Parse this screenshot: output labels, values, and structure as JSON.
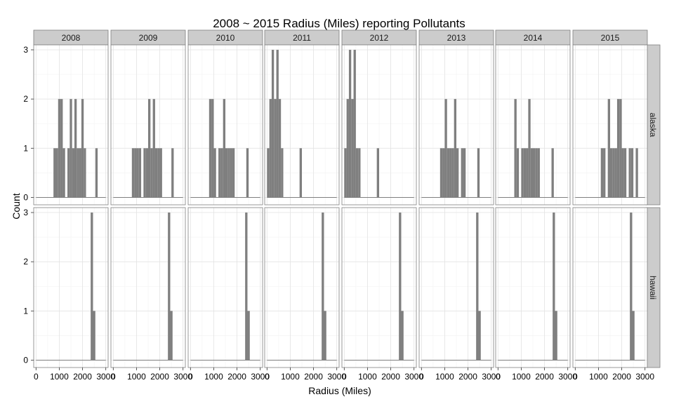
{
  "chart_data": {
    "type": "histogram",
    "title": "2008 ~ 2015 Radius (Miles) reporting Pollutants",
    "xlabel": "Radius (Miles)",
    "ylabel": "Count",
    "xlim": [
      -100,
      3100
    ],
    "ylim": [
      -0.15,
      3.1
    ],
    "x_ticks": [
      0,
      1000,
      2000,
      3000
    ],
    "x_tick_labels": [
      "0",
      "1000",
      "2000",
      "3000"
    ],
    "y_ticks": [
      0,
      1,
      2,
      3
    ],
    "y_tick_labels": [
      "0",
      "1",
      "2",
      "3"
    ],
    "bin_width": 100,
    "bar_color": "#7f7f7f",
    "strip_color": "#cccccc",
    "panel_border_color": "#7f7f7f",
    "grid": true,
    "columns": [
      "2008",
      "2009",
      "2010",
      "2011",
      "2012",
      "2013",
      "2014",
      "2015"
    ],
    "rows": [
      "alaska",
      "hawaii"
    ],
    "bins": {
      "alaska": {
        "2008": [
          [
            800,
            1
          ],
          [
            900,
            1
          ],
          [
            1000,
            2
          ],
          [
            1100,
            2
          ],
          [
            1200,
            1
          ],
          [
            1400,
            1
          ],
          [
            1500,
            2
          ],
          [
            1600,
            1
          ],
          [
            1700,
            2
          ],
          [
            1800,
            1
          ],
          [
            1900,
            1
          ],
          [
            2000,
            2
          ],
          [
            2100,
            1
          ],
          [
            2600,
            1
          ]
        ],
        "2009": [
          [
            850,
            1
          ],
          [
            950,
            1
          ],
          [
            1050,
            1
          ],
          [
            1150,
            1
          ],
          [
            1350,
            1
          ],
          [
            1450,
            1
          ],
          [
            1550,
            2
          ],
          [
            1650,
            1
          ],
          [
            1750,
            2
          ],
          [
            1850,
            1
          ],
          [
            1950,
            1
          ],
          [
            2050,
            1
          ],
          [
            2550,
            1
          ]
        ],
        "2010": [
          [
            850,
            2
          ],
          [
            950,
            2
          ],
          [
            1050,
            1
          ],
          [
            1250,
            1
          ],
          [
            1350,
            1
          ],
          [
            1450,
            2
          ],
          [
            1550,
            1
          ],
          [
            1650,
            1
          ],
          [
            1750,
            1
          ],
          [
            1850,
            1
          ],
          [
            2450,
            1
          ]
        ],
        "2011": [
          [
            50,
            1
          ],
          [
            150,
            2
          ],
          [
            250,
            3
          ],
          [
            350,
            2
          ],
          [
            450,
            3
          ],
          [
            550,
            2
          ],
          [
            650,
            1
          ],
          [
            1450,
            1
          ]
        ],
        "2012": [
          [
            50,
            1
          ],
          [
            150,
            2
          ],
          [
            250,
            3
          ],
          [
            350,
            2
          ],
          [
            450,
            3
          ],
          [
            550,
            1
          ],
          [
            650,
            1
          ],
          [
            1450,
            1
          ]
        ],
        "2013": [
          [
            850,
            1
          ],
          [
            950,
            1
          ],
          [
            1050,
            2
          ],
          [
            1150,
            1
          ],
          [
            1250,
            1
          ],
          [
            1350,
            1
          ],
          [
            1450,
            2
          ],
          [
            1550,
            1
          ],
          [
            1750,
            1
          ],
          [
            1850,
            1
          ],
          [
            2450,
            1
          ]
        ],
        "2014": [
          [
            750,
            2
          ],
          [
            850,
            1
          ],
          [
            1050,
            1
          ],
          [
            1150,
            1
          ],
          [
            1250,
            1
          ],
          [
            1350,
            2
          ],
          [
            1450,
            1
          ],
          [
            1550,
            1
          ],
          [
            1650,
            1
          ],
          [
            1750,
            1
          ],
          [
            2350,
            1
          ]
        ],
        "2015": [
          [
            1150,
            1
          ],
          [
            1250,
            1
          ],
          [
            1450,
            2
          ],
          [
            1550,
            1
          ],
          [
            1650,
            1
          ],
          [
            1750,
            1
          ],
          [
            1850,
            2
          ],
          [
            1950,
            2
          ],
          [
            2050,
            1
          ],
          [
            2150,
            1
          ],
          [
            2350,
            1
          ],
          [
            2450,
            1
          ],
          [
            2650,
            1
          ]
        ]
      },
      "hawaii": {
        "2008": [
          [
            2400,
            3
          ],
          [
            2500,
            1
          ]
        ],
        "2009": [
          [
            2400,
            3
          ],
          [
            2500,
            1
          ]
        ],
        "2010": [
          [
            2400,
            3
          ],
          [
            2500,
            1
          ]
        ],
        "2011": [
          [
            2400,
            3
          ],
          [
            2500,
            1
          ]
        ],
        "2012": [
          [
            2400,
            3
          ],
          [
            2500,
            1
          ]
        ],
        "2013": [
          [
            2400,
            3
          ],
          [
            2500,
            1
          ]
        ],
        "2014": [
          [
            2400,
            3
          ],
          [
            2500,
            1
          ]
        ],
        "2015": [
          [
            2400,
            3
          ],
          [
            2500,
            1
          ]
        ]
      }
    }
  }
}
